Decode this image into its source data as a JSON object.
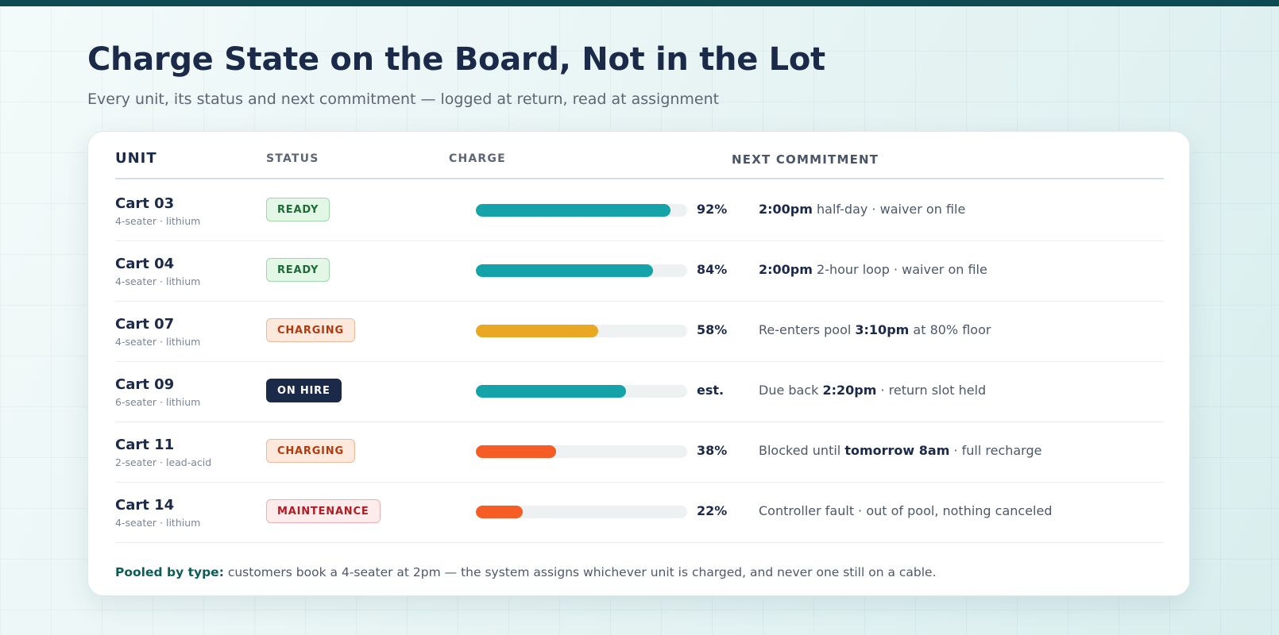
{
  "page": {
    "title": "Charge State on the Board, Not in the Lot",
    "subtitle": "Every unit, its status and next commitment — logged at return, read at assignment"
  },
  "table": {
    "headers": {
      "unit": "UNIT",
      "status": "STATUS",
      "charge": "CHARGE",
      "next": "NEXT COMMITMENT"
    },
    "rows": [
      {
        "unit": "Cart 03",
        "spec": "4-seater · lithium",
        "status": "READY",
        "status_kind": "ready",
        "charge_pct": 92,
        "charge_label": "92%",
        "bar_color": "#14a3a8",
        "next": {
          "pre": "",
          "bold": "2:00pm",
          "post": " half-day · waiver on file"
        }
      },
      {
        "unit": "Cart 04",
        "spec": "4-seater · lithium",
        "status": "READY",
        "status_kind": "ready",
        "charge_pct": 84,
        "charge_label": "84%",
        "bar_color": "#14a3a8",
        "next": {
          "pre": "",
          "bold": "2:00pm",
          "post": " 2-hour loop · waiver on file"
        }
      },
      {
        "unit": "Cart 07",
        "spec": "4-seater · lithium",
        "status": "CHARGING",
        "status_kind": "charging",
        "charge_pct": 58,
        "charge_label": "58%",
        "bar_color": "#e8a823",
        "next": {
          "pre": "Re-enters pool ",
          "bold": "3:10pm",
          "post": " at 80% floor"
        }
      },
      {
        "unit": "Cart 09",
        "spec": "6-seater · lithium",
        "status": "ON HIRE",
        "status_kind": "onhire",
        "charge_pct": 71,
        "charge_label": "est.",
        "bar_color": "#14a3a8",
        "next": {
          "pre": "Due back ",
          "bold": "2:20pm",
          "post": " · return slot held"
        }
      },
      {
        "unit": "Cart 11",
        "spec": "2-seater · lead-acid",
        "status": "CHARGING",
        "status_kind": "charging",
        "charge_pct": 38,
        "charge_label": "38%",
        "bar_color": "#f55d24",
        "next": {
          "pre": "Blocked until ",
          "bold": "tomorrow 8am",
          "post": " · full recharge"
        }
      },
      {
        "unit": "Cart 14",
        "spec": "4-seater · lithium",
        "status": "MAINTENANCE",
        "status_kind": "maint",
        "charge_pct": 22,
        "charge_label": "22%",
        "bar_color": "#f55d24",
        "next": {
          "pre": "Controller fault · out of pool, nothing canceled",
          "bold": "",
          "post": ""
        }
      }
    ]
  },
  "footnote": {
    "lead": "Pooled by type:",
    "text": " customers book a 4-seater at 2pm — the system assigns whichever unit is charged, and never one still on a cable."
  }
}
